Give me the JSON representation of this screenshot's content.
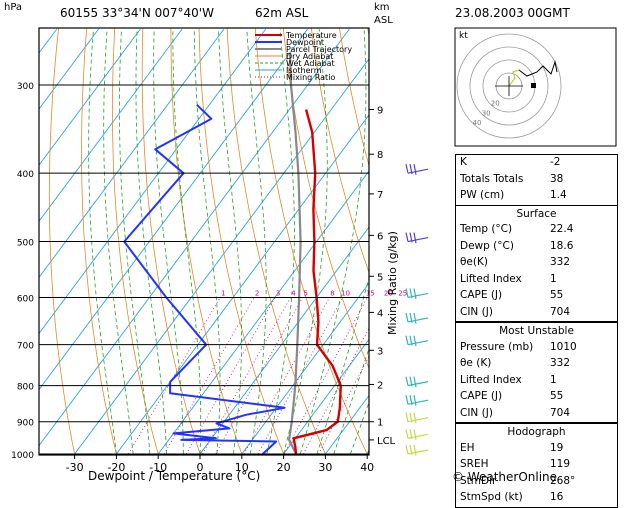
{
  "header": {
    "hpa_label": "hPa",
    "station": "60155  33°34'N  007°40'W",
    "elevation": "62m  ASL",
    "km_label": "km",
    "asl_label": "ASL",
    "datetime": "23.08.2003  00GMT"
  },
  "chart_data": {
    "type": "skew-t",
    "xlabel": "Dewpoint / Temperature (°C)",
    "ylabel_left": "hPa",
    "ylabel_right": "Mixing Ratio (g/kg)",
    "x_ticks": [
      -30,
      -20,
      -10,
      0,
      10,
      20,
      30,
      40
    ],
    "pressure_ticks": [
      300,
      400,
      500,
      600,
      700,
      800,
      900,
      1000
    ],
    "km_ticks": [
      {
        "label": "9",
        "p": 325
      },
      {
        "label": "8",
        "p": 376
      },
      {
        "label": "7",
        "p": 428
      },
      {
        "label": "6",
        "p": 490
      },
      {
        "label": "5",
        "p": 560
      },
      {
        "label": "4",
        "p": 630
      },
      {
        "label": "3",
        "p": 713
      },
      {
        "label": "2",
        "p": 797
      },
      {
        "label": "1",
        "p": 900
      },
      {
        "label": "LCL",
        "p": 955
      }
    ],
    "mixing_ratio_labels": [
      "1",
      "2",
      "3",
      "4",
      "5",
      "8",
      "10",
      "15",
      "20",
      "25"
    ],
    "legend": [
      {
        "name": "Temperature",
        "color": "#d40000"
      },
      {
        "name": "Dewpoint",
        "color": "#2233ff"
      },
      {
        "name": "Parcel Trajectory",
        "color": "#888888"
      },
      {
        "name": "Dry Adiabat",
        "color": "#e08a2a"
      },
      {
        "name": "Wet Adiabat",
        "color": "#1fa31f"
      },
      {
        "name": "Isotherm",
        "color": "#2aa6d9"
      },
      {
        "name": "Mixing Ratio",
        "color": "#d4008a"
      }
    ],
    "temperature": [
      {
        "p": 1000,
        "t": 23
      },
      {
        "p": 975,
        "t": 21.4
      },
      {
        "p": 950,
        "t": 19.6
      },
      {
        "p": 925,
        "t": 26
      },
      {
        "p": 900,
        "t": 27.2
      },
      {
        "p": 860,
        "t": 25.2
      },
      {
        "p": 800,
        "t": 21.5
      },
      {
        "p": 750,
        "t": 16
      },
      {
        "p": 700,
        "t": 8.5
      },
      {
        "p": 650,
        "t": 4.8
      },
      {
        "p": 600,
        "t": 0
      },
      {
        "p": 550,
        "t": -5.5
      },
      {
        "p": 500,
        "t": -10.5
      },
      {
        "p": 450,
        "t": -16.5
      },
      {
        "p": 400,
        "t": -22.5
      },
      {
        "p": 350,
        "t": -30.5
      },
      {
        "p": 325,
        "t": -36
      }
    ],
    "dewpoint": [
      {
        "p": 1000,
        "t": 15
      },
      {
        "p": 960,
        "t": 16
      },
      {
        "p": 955,
        "t": -7
      },
      {
        "p": 950,
        "t": 1
      },
      {
        "p": 935,
        "t": -10
      },
      {
        "p": 920,
        "t": 2.5
      },
      {
        "p": 905,
        "t": -1.5
      },
      {
        "p": 880,
        "t": 4
      },
      {
        "p": 860,
        "t": 12
      },
      {
        "p": 820,
        "t": -18
      },
      {
        "p": 790,
        "t": -20
      },
      {
        "p": 700,
        "t": -18
      },
      {
        "p": 600,
        "t": -36
      },
      {
        "p": 500,
        "t": -56
      },
      {
        "p": 400,
        "t": -54
      },
      {
        "p": 370,
        "t": -65
      },
      {
        "p": 335,
        "t": -57
      },
      {
        "p": 320,
        "t": -63
      }
    ],
    "parcel": [
      {
        "p": 1000,
        "t": 23
      },
      {
        "p": 955,
        "t": 18.8
      },
      {
        "p": 900,
        "t": 16.2
      },
      {
        "p": 800,
        "t": 10.6
      },
      {
        "p": 700,
        "t": 3.8
      },
      {
        "p": 600,
        "t": -4.2
      },
      {
        "p": 500,
        "t": -13.8
      },
      {
        "p": 400,
        "t": -26.5
      },
      {
        "p": 350,
        "t": -34.5
      },
      {
        "p": 300,
        "t": -44
      },
      {
        "p": 270,
        "t": -50
      }
    ],
    "wind_barbs_pressures": [
      1000,
      950,
      900,
      850,
      800,
      700,
      650,
      600,
      500,
      400
    ]
  },
  "hodograph": {
    "kt_label": "kt",
    "ring_labels": [
      "10",
      "20",
      "30",
      "40"
    ]
  },
  "indices": {
    "top": [
      {
        "k": "K",
        "v": "-2"
      },
      {
        "k": "Totals Totals",
        "v": "38"
      },
      {
        "k": "PW (cm)",
        "v": "1.4"
      }
    ],
    "surface_title": "Surface",
    "surface": [
      {
        "k": "Temp (°C)",
        "v": "22.4"
      },
      {
        "k": "Dewp (°C)",
        "v": "18.6"
      },
      {
        "k": "θe(K)",
        "v": "332"
      },
      {
        "k": "Lifted Index",
        "v": "1"
      },
      {
        "k": "CAPE (J)",
        "v": "55"
      },
      {
        "k": "CIN (J)",
        "v": "704"
      }
    ],
    "mu_title": "Most Unstable",
    "mu": [
      {
        "k": "Pressure (mb)",
        "v": "1010"
      },
      {
        "k": "θe (K)",
        "v": "332"
      },
      {
        "k": "Lifted Index",
        "v": "1"
      },
      {
        "k": "CAPE (J)",
        "v": "55"
      },
      {
        "k": "CIN (J)",
        "v": "704"
      }
    ],
    "hodo_title": "Hodograph",
    "hodo": [
      {
        "k": "EH",
        "v": "19"
      },
      {
        "k": "SREH",
        "v": "119"
      },
      {
        "k": "StmDir",
        "v": "268°"
      },
      {
        "k": "StmSpd (kt)",
        "v": "16"
      }
    ]
  },
  "footer": {
    "copyright": "© WeatherOnline"
  }
}
